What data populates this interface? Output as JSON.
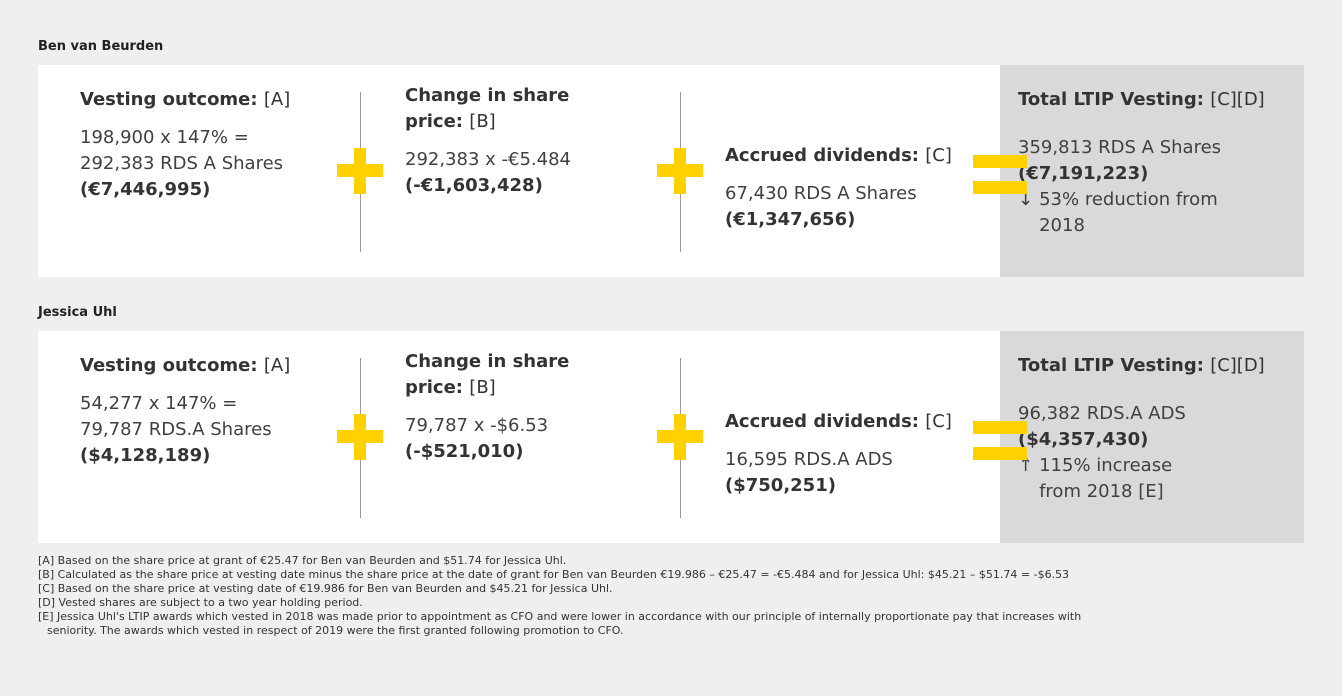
{
  "sections": [
    {
      "name": "Ben van Beurden",
      "columns": [
        {
          "heading": "Vesting outcome:",
          "ref": "[A]",
          "lines": [
            "198,900 x 147% =",
            "292,383 RDS A Shares"
          ],
          "amount": "(€7,446,995)"
        },
        {
          "heading": "Change in share price:",
          "ref": "[B]",
          "lines": [
            "292,383 x -€5.484"
          ],
          "amount": "(-€1,603,428)"
        },
        {
          "heading": "Accrued dividends:",
          "ref": "[C]",
          "lines": [
            "67,430 RDS A Shares"
          ],
          "amount": "(€1,347,656)"
        }
      ],
      "total": {
        "heading": "Total LTIP Vesting:",
        "ref": "[C][D]",
        "lines": [
          "359,813 RDS A Shares"
        ],
        "amount": "(€7,191,223)",
        "arrow": "↓",
        "change": "53% reduction from 2018"
      }
    },
    {
      "name": "Jessica Uhl",
      "columns": [
        {
          "heading": "Vesting outcome:",
          "ref": "[A]",
          "lines": [
            "54,277 x 147% =",
            "79,787 RDS.A Shares"
          ],
          "amount": "($4,128,189)"
        },
        {
          "heading": "Change in share price:",
          "ref": "[B]",
          "lines": [
            "79,787 x -$6.53"
          ],
          "amount": "(-$521,010)"
        },
        {
          "heading": "Accrued dividends:",
          "ref": "[C]",
          "lines": [
            "16,595 RDS.A ADS"
          ],
          "amount": "($750,251)"
        }
      ],
      "total": {
        "heading": "Total LTIP Vesting:",
        "ref": "[C][D]",
        "lines": [
          "96,382 RDS.A ADS"
        ],
        "amount": "($4,357,430)",
        "arrow": "↑",
        "change": "115% increase from 2018 [E]"
      }
    }
  ],
  "footnotes": [
    "[A] Based on the share price at grant of €25.47 for Ben van Beurden and $51.74 for Jessica Uhl.",
    "[B] Calculated as the share price at vesting date minus the share price at the date of grant for Ben van Beurden €19.986 – €25.47 = -€5.484 and for Jessica Uhl: $45.21 – $51.74 = -$6.53",
    "[C] Based on the share price at vesting date of €19.986 for Ben van Beurden and $45.21 for Jessica Uhl.",
    "[D] Vested shares are subject to a two year holding period.",
    "[E] Jessica Uhl's LTIP awards which vested in 2018 was made prior to appointment as CFO and were lower in accordance with our principle of internally proportionate pay that increases with seniority. The awards which vested in respect of 2019 were the first granted following promotion to CFO."
  ]
}
